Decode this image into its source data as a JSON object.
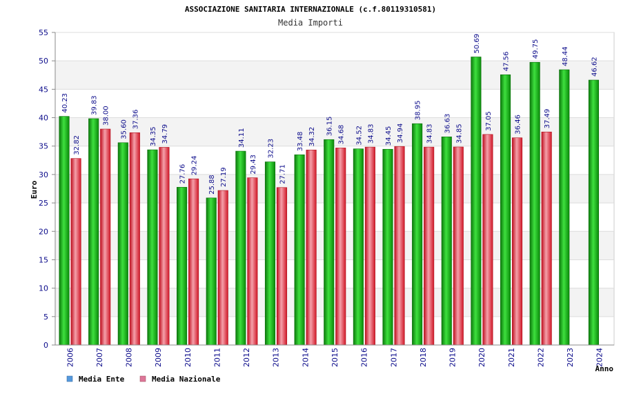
{
  "chart_data": {
    "type": "bar",
    "title": "ASSOCIAZIONE SANITARIA INTERNAZIONALE (c.f.80119310581)",
    "subtitle": "Media Importi",
    "xlabel": "Anno",
    "ylabel": "Euro",
    "ylim": [
      0,
      55
    ],
    "yticks": [
      0,
      5,
      10,
      15,
      20,
      25,
      30,
      35,
      40,
      45,
      50,
      55
    ],
    "grid": true,
    "legend_position": "bottom-left",
    "categories": [
      "2006",
      "2007",
      "2008",
      "2009",
      "2010",
      "2011",
      "2012",
      "2013",
      "2014",
      "2015",
      "2016",
      "2017",
      "2018",
      "2019",
      "2020",
      "2021",
      "2022",
      "2023",
      "2024"
    ],
    "series": [
      {
        "name": "Media Ente",
        "color": "#22aa22",
        "legend_color": "#5599dd",
        "values": [
          40.23,
          39.83,
          35.6,
          34.35,
          27.76,
          25.88,
          34.11,
          32.23,
          33.48,
          36.15,
          34.52,
          34.45,
          38.95,
          36.63,
          50.69,
          47.56,
          49.75,
          48.44,
          46.62
        ],
        "labels": [
          "40.23",
          "39.83",
          "35.60",
          "34.35",
          "27.76",
          "25.88",
          "34.11",
          "32.23",
          "33.48",
          "36.15",
          "34.52",
          "34.45",
          "38.95",
          "36.63",
          "50.69",
          "47.56",
          "49.75",
          "48.44",
          "46.62"
        ]
      },
      {
        "name": "Media Nazionale",
        "color": "#dd2233",
        "legend_color": "#dd7799",
        "values": [
          32.82,
          38.0,
          37.36,
          34.79,
          29.24,
          27.19,
          29.43,
          27.71,
          34.32,
          34.68,
          34.83,
          34.94,
          34.83,
          34.85,
          37.05,
          36.46,
          37.49,
          null,
          null
        ],
        "labels": [
          "32.82",
          "38.00",
          "37.36",
          "34.79",
          "29.24",
          "27.19",
          "29.43",
          "27.71",
          "34.32",
          "34.68",
          "34.83",
          "34.94",
          "34.83",
          "34.85",
          "37.05",
          "36.46",
          "37.49",
          "",
          ""
        ]
      }
    ]
  }
}
